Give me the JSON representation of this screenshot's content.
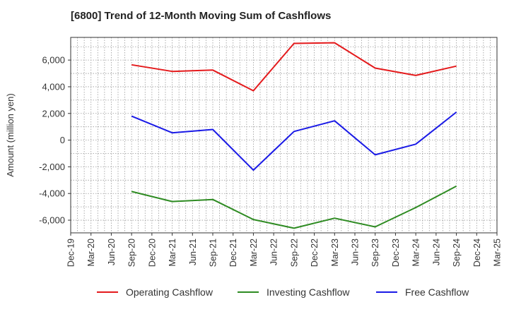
{
  "chart_data": {
    "type": "line",
    "title": "[6800]  Trend of 12-Month Moving Sum of Cashflows",
    "xlabel": "",
    "ylabel": "Amount (million yen)",
    "categories": [
      "Dec-19",
      "Mar-20",
      "Jun-20",
      "Sep-20",
      "Dec-20",
      "Mar-21",
      "Jun-21",
      "Sep-21",
      "Dec-21",
      "Mar-22",
      "Jun-22",
      "Sep-22",
      "Dec-22",
      "Mar-23",
      "Jun-23",
      "Sep-23",
      "Dec-23",
      "Mar-24",
      "Jun-24",
      "Sep-24",
      "Dec-24",
      "Mar-25"
    ],
    "tick_labels": [
      "Dec-19",
      "Mar-20",
      "Jun-20",
      "Sep-20",
      "Dec-20",
      "Mar-21",
      "Jun-21",
      "Sep-21",
      "Dec-21",
      "Mar-22",
      "Jun-22",
      "Sep-22",
      "Dec-22",
      "Mar-23",
      "Jun-23",
      "Sep-23",
      "Dec-23",
      "Mar-24",
      "Jun-24",
      "Sep-24",
      "Dec-24",
      "Mar-25"
    ],
    "y_ticks": [
      -6000,
      -4000,
      -2000,
      0,
      2000,
      4000,
      6000
    ],
    "y_tick_labels": [
      "-6,000",
      "-4,000",
      "-2,000",
      "0",
      "2,000",
      "4,000",
      "6,000"
    ],
    "ylim": [
      -6950,
      7700
    ],
    "grid": true,
    "legend_position": "bottom",
    "series": [
      {
        "name": "Operating Cashflow",
        "color": "#e41a1c",
        "x": [
          "Sep-20",
          "Mar-21",
          "Sep-21",
          "Mar-22",
          "Sep-22",
          "Mar-23",
          "Sep-23",
          "Mar-24",
          "Sep-24"
        ],
        "values": [
          5650,
          5150,
          5250,
          3700,
          7250,
          7300,
          5400,
          4850,
          5550
        ]
      },
      {
        "name": "Investing Cashflow",
        "color": "#2e8b22",
        "x": [
          "Sep-20",
          "Mar-21",
          "Sep-21",
          "Mar-22",
          "Sep-22",
          "Mar-23",
          "Sep-23",
          "Mar-24",
          "Sep-24"
        ],
        "values": [
          -3850,
          -4600,
          -4450,
          -5950,
          -6600,
          -5850,
          -6500,
          -5050,
          -3450
        ]
      },
      {
        "name": "Free Cashflow",
        "color": "#1a1ae6",
        "x": [
          "Sep-20",
          "Mar-21",
          "Sep-21",
          "Mar-22",
          "Sep-22",
          "Mar-23",
          "Sep-23",
          "Mar-24",
          "Sep-24"
        ],
        "values": [
          1800,
          550,
          800,
          -2250,
          650,
          1450,
          -1100,
          -300,
          2100
        ]
      }
    ]
  }
}
